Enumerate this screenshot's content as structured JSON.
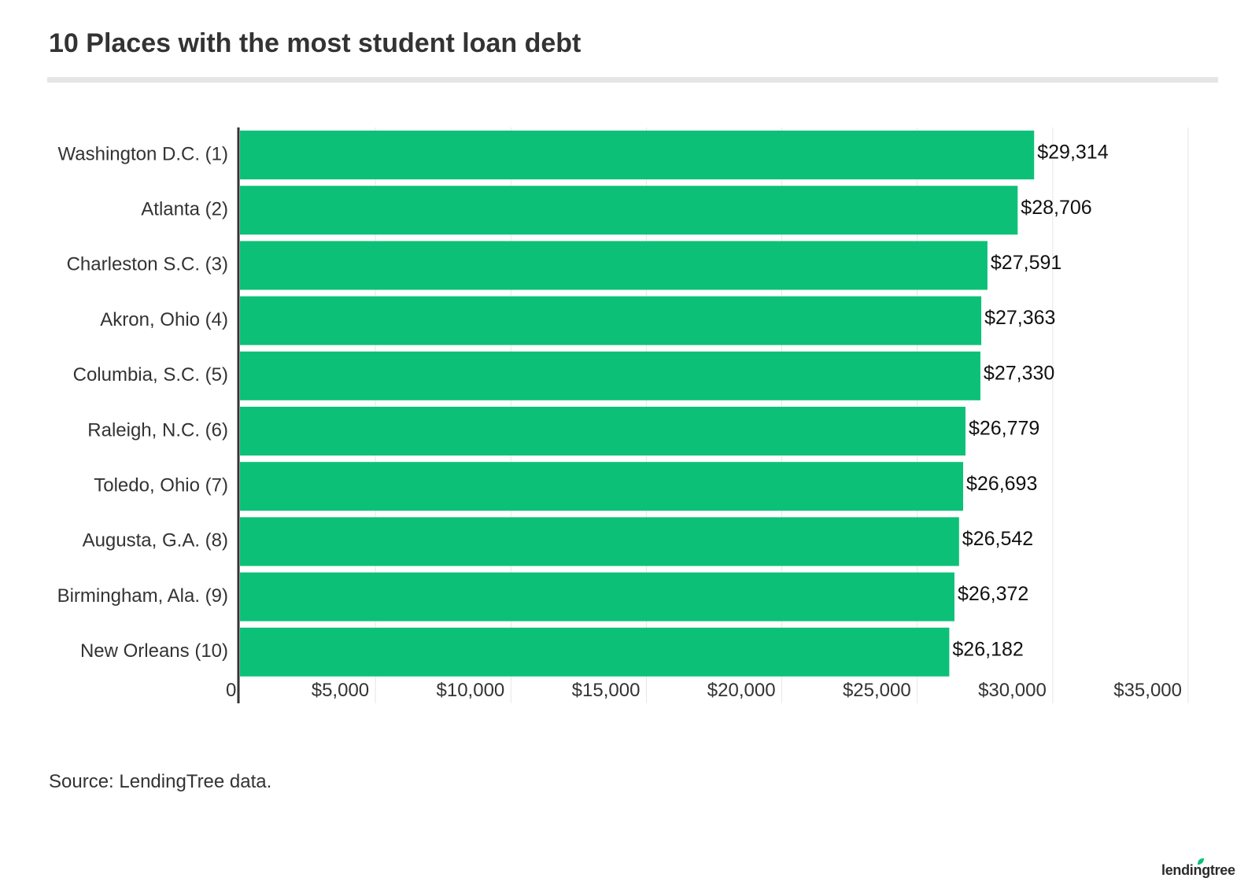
{
  "title": "10 Places with the most student loan debt",
  "source": "Source: LendingTree data.",
  "logo_text": "lendingtree",
  "colors": {
    "bar": "#0cc177",
    "text": "#333333",
    "grid": "#e6e6e6",
    "axis": "#333333",
    "leaf": "#0cc177"
  },
  "chart_data": {
    "type": "bar",
    "orientation": "horizontal",
    "categories": [
      "Washington D.C. (1)",
      "Atlanta (2)",
      "Charleston S.C. (3)",
      "Akron, Ohio (4)",
      "Columbia, S.C. (5)",
      "Raleigh, N.C. (6)",
      "Toledo, Ohio (7)",
      "Augusta, G.A. (8)",
      "Birmingham, Ala. (9)",
      "New Orleans (10)"
    ],
    "values": [
      29314,
      28706,
      27591,
      27363,
      27330,
      26779,
      26693,
      26542,
      26372,
      26182
    ],
    "value_labels": [
      "$29,314",
      "$28,706",
      "$27,591",
      "$27,363",
      "$27,330",
      "$26,779",
      "$26,693",
      "$26,542",
      "$26,372",
      "$26,182"
    ],
    "xlim": [
      0,
      35000
    ],
    "x_ticks": [
      0,
      5000,
      10000,
      15000,
      20000,
      25000,
      30000,
      35000
    ],
    "x_tick_labels": [
      "0",
      "$5,000",
      "$10,000",
      "$15,000",
      "$20,000",
      "$25,000",
      "$30,000",
      "$35,000"
    ],
    "grid": true,
    "legend": "none"
  }
}
